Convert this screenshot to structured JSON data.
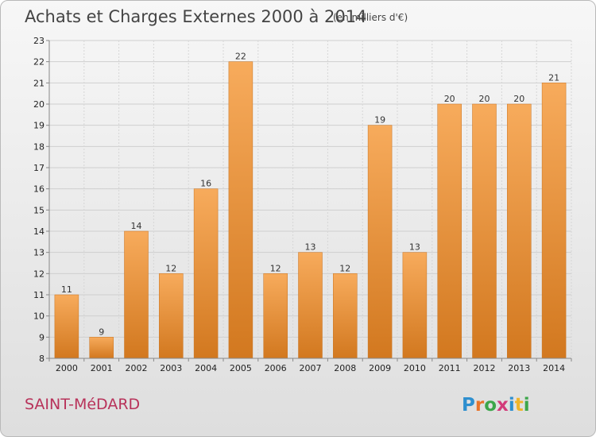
{
  "chart_data": {
    "type": "bar",
    "title": "Achats et Charges Externes 2000 à 2014",
    "subtitle": "(en milliers d'€)",
    "xlabel": "",
    "ylabel": "",
    "categories": [
      "2000",
      "2001",
      "2002",
      "2003",
      "2004",
      "2005",
      "2006",
      "2007",
      "2008",
      "2009",
      "2010",
      "2011",
      "2012",
      "2013",
      "2014"
    ],
    "values": [
      11,
      9,
      14,
      12,
      16,
      22,
      12,
      13,
      12,
      19,
      13,
      20,
      20,
      20,
      21
    ],
    "data_labels": [
      "11",
      "9",
      "14",
      "12",
      "16",
      "22",
      "12",
      "13",
      "12",
      "19",
      "13",
      "20",
      "20",
      "20",
      "21"
    ],
    "ylim": [
      8,
      23
    ],
    "yticks": [
      "8",
      "9",
      "10",
      "11",
      "12",
      "13",
      "14",
      "15",
      "16",
      "17",
      "18",
      "19",
      "20",
      "21",
      "22",
      "23"
    ],
    "grid": true,
    "bar_color": "#f09a40",
    "bar_color_light": "#f7ab5c",
    "bar_color_dark": "#d2781f"
  },
  "footer": {
    "place_name": "SAINT-MéDARD",
    "logo_text": "Proxiti",
    "logo_letter_colors": [
      "#2e8fcf",
      "#e8732a",
      "#3ca64a",
      "#d23b7a",
      "#2e8fcf",
      "#f0b52a",
      "#3ca64a"
    ]
  }
}
